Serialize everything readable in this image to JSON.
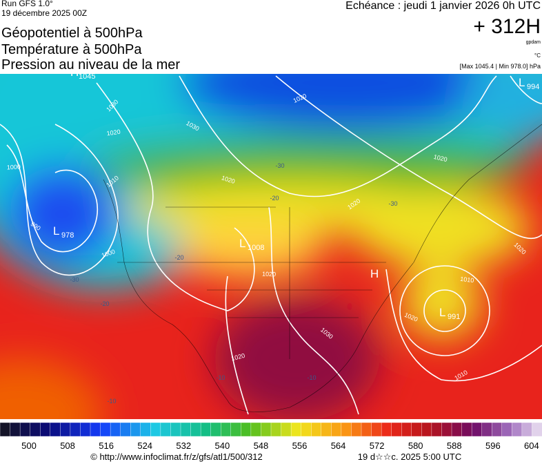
{
  "header": {
    "run": "Run GFS 1.0°",
    "date": "19 décembre 2025 00Z",
    "titles": [
      "Géopotentiel à 500hPa",
      "Température à 500hPa",
      "Pression au niveau de la mer"
    ],
    "forecast": "Echéance : jeudi 1 janvier 2026 0h UTC",
    "lead": "+ 312H",
    "unit_geo": "gpdam",
    "unit_temp": "°C",
    "range": "[Max 1045.4 | Min 978.0] hPa"
  },
  "map": {
    "centers": [
      {
        "letter": "H",
        "value": "1045"
      },
      {
        "letter": "L",
        "value": "978"
      },
      {
        "letter": "L",
        "value": "1008"
      },
      {
        "letter": "H",
        "value": null
      },
      {
        "letter": "L",
        "value": "991"
      },
      {
        "letter": "L",
        "value": "994"
      }
    ],
    "isobar_labels": [
      "1030",
      "1020",
      "1030",
      "1020",
      "1020",
      "1010",
      "1000",
      "990",
      "1000",
      "1020",
      "1020",
      "1020",
      "1030",
      "1020",
      "1020",
      "1010",
      "1010",
      "1020"
    ],
    "temperature_labels": [
      "-30",
      "-20",
      "-30",
      "-20",
      "-30",
      "-20",
      "-10",
      "-10",
      "-10"
    ]
  },
  "colorbar": {
    "labels": [
      500,
      508,
      516,
      524,
      532,
      540,
      548,
      556,
      564,
      572,
      580,
      588,
      596,
      604
    ]
  },
  "footer": {
    "source": "© http://www.infoclimat.fr/z/gfs/atl1/500/312",
    "time": "19 d☆☆c. 2025  5:00 UTC"
  }
}
